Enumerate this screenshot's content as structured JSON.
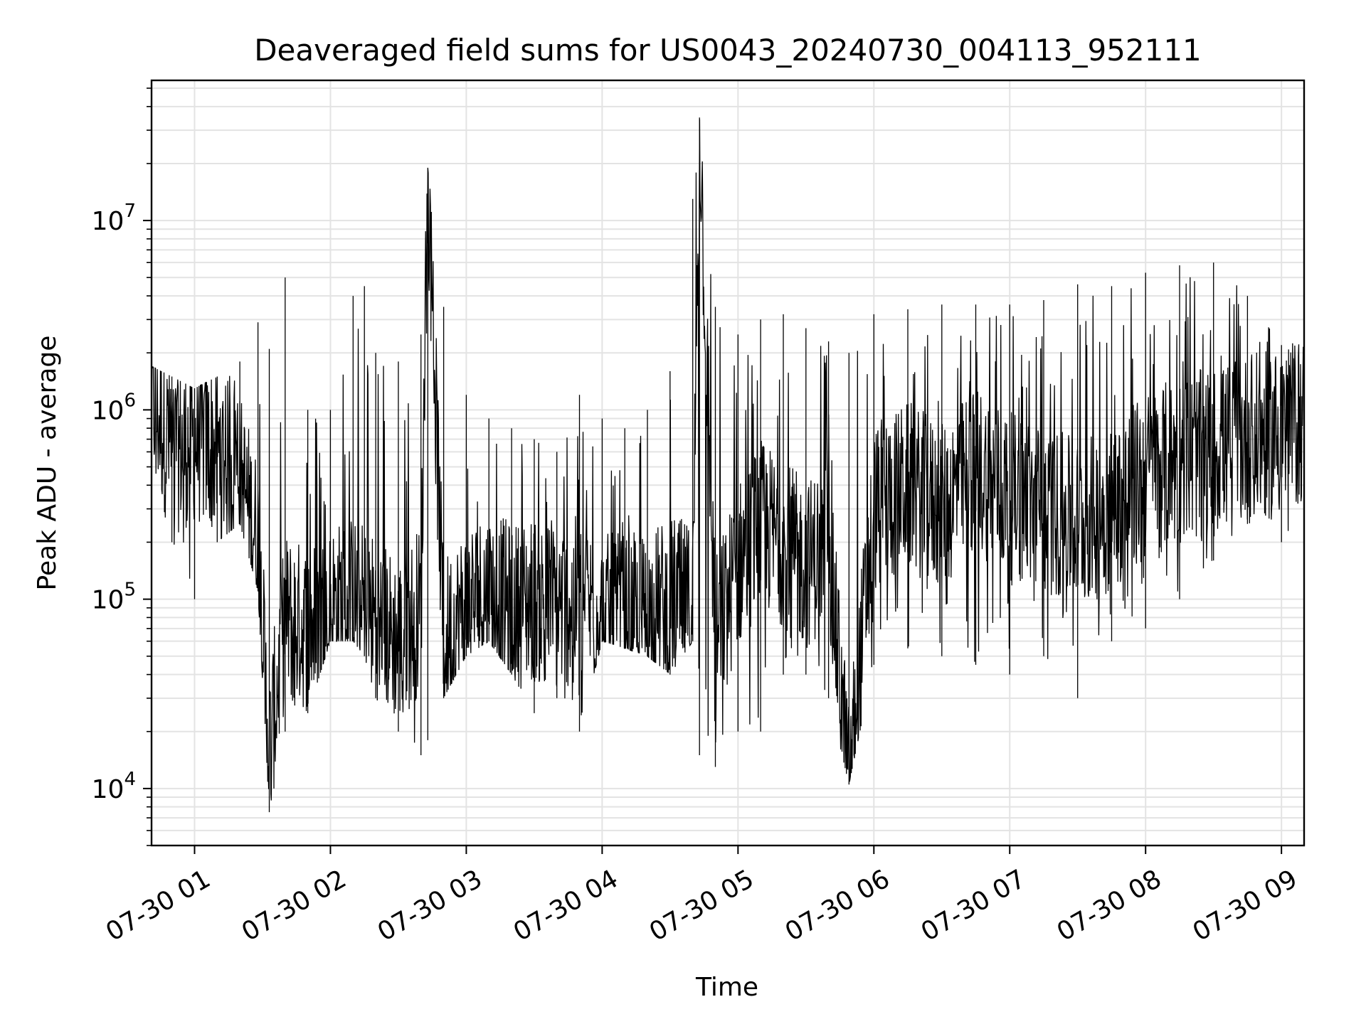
{
  "chart_data": {
    "type": "line",
    "title": "Deaveraged field sums for US0043_20240730_004113_952111",
    "xlabel": "Time",
    "ylabel": "Peak ADU - average",
    "y_scale": "log",
    "ylim": [
      5000,
      55000000
    ],
    "xlim": [
      "2024-07-30 00:41",
      "2024-07-30 09:10"
    ],
    "x_ticks": [
      "07-30 01",
      "07-30 02",
      "07-30 03",
      "07-30 04",
      "07-30 05",
      "07-30 06",
      "07-30 07",
      "07-30 08",
      "07-30 09"
    ],
    "y_ticks": [
      {
        "base": "10",
        "exp": "4",
        "value": 10000
      },
      {
        "base": "10",
        "exp": "5",
        "value": 100000
      },
      {
        "base": "10",
        "exp": "6",
        "value": 1000000
      },
      {
        "base": "10",
        "exp": "7",
        "value": 10000000
      }
    ],
    "grid": true,
    "line_color": "#000000",
    "grid_color": "#e3e3e3",
    "series": [
      {
        "x": [
          "2024-07-30 00:41",
          "2024-07-30 00:50",
          "2024-07-30 01:00",
          "2024-07-30 01:10",
          "2024-07-30 01:20",
          "2024-07-30 01:28",
          "2024-07-30 01:33",
          "2024-07-30 01:40",
          "2024-07-30 01:50",
          "2024-07-30 02:00",
          "2024-07-30 02:10",
          "2024-07-30 02:15",
          "2024-07-30 02:20",
          "2024-07-30 02:30",
          "2024-07-30 02:40",
          "2024-07-30 02:43",
          "2024-07-30 02:50",
          "2024-07-30 03:00",
          "2024-07-30 03:10",
          "2024-07-30 03:20",
          "2024-07-30 03:30",
          "2024-07-30 03:40",
          "2024-07-30 03:50",
          "2024-07-30 04:00",
          "2024-07-30 04:10",
          "2024-07-30 04:20",
          "2024-07-30 04:30",
          "2024-07-30 04:40",
          "2024-07-30 04:43",
          "2024-07-30 04:50",
          "2024-07-30 05:00",
          "2024-07-30 05:10",
          "2024-07-30 05:20",
          "2024-07-30 05:30",
          "2024-07-30 05:40",
          "2024-07-30 05:49",
          "2024-07-30 06:00",
          "2024-07-30 06:15",
          "2024-07-30 06:30",
          "2024-07-30 06:45",
          "2024-07-30 07:00",
          "2024-07-30 07:15",
          "2024-07-30 07:30",
          "2024-07-30 07:45",
          "2024-07-30 08:00",
          "2024-07-30 08:15",
          "2024-07-30 08:30",
          "2024-07-30 08:45",
          "2024-07-30 09:00",
          "2024-07-30 09:10"
        ],
        "y": [
          1200000,
          600000,
          700000,
          600000,
          450000,
          200000,
          15000,
          80000,
          70000,
          90000,
          100000,
          90000,
          80000,
          60000,
          90000,
          19000000,
          60000,
          90000,
          110000,
          90000,
          100000,
          90000,
          100000,
          80000,
          80000,
          80000,
          100000,
          90000,
          35000000,
          60000,
          150000,
          250000,
          200000,
          150000,
          200000,
          10000,
          300000,
          400000,
          300000,
          500000,
          350000,
          300000,
          250000,
          300000,
          450000,
          550000,
          600000,
          700000,
          750000,
          900000
        ],
        "envelope_high": [
          1700000,
          1500000,
          1300000,
          1500000,
          1800000,
          2900000,
          2100000,
          5000000,
          1000000,
          1000000,
          4000000,
          4500000,
          2000000,
          1800000,
          2500000,
          19000000,
          3500000,
          1200000,
          900000,
          800000,
          700000,
          600000,
          1200000,
          900000,
          800000,
          1000000,
          1600000,
          13000000,
          35000000,
          3500000,
          2500000,
          3000000,
          3200000,
          2700000,
          2300000,
          2000000,
          3200000,
          3400000,
          3600000,
          3600000,
          3600000,
          3800000,
          4600000,
          4500000,
          5300000,
          5800000,
          6000000,
          4000000,
          2200000,
          2300000
        ],
        "envelope_low": [
          400000,
          200000,
          100000,
          200000,
          250000,
          110000,
          7500,
          20000,
          25000,
          60000,
          60000,
          50000,
          30000,
          20000,
          15000,
          18000,
          30000,
          50000,
          60000,
          40000,
          25000,
          30000,
          20000,
          60000,
          55000,
          50000,
          40000,
          60000,
          15000,
          13000,
          20000,
          20000,
          40000,
          40000,
          30000,
          10500,
          45000,
          55000,
          50000,
          45000,
          40000,
          50000,
          30000,
          60000,
          70000,
          100000,
          160000,
          250000,
          200000,
          300000
        ]
      }
    ]
  }
}
